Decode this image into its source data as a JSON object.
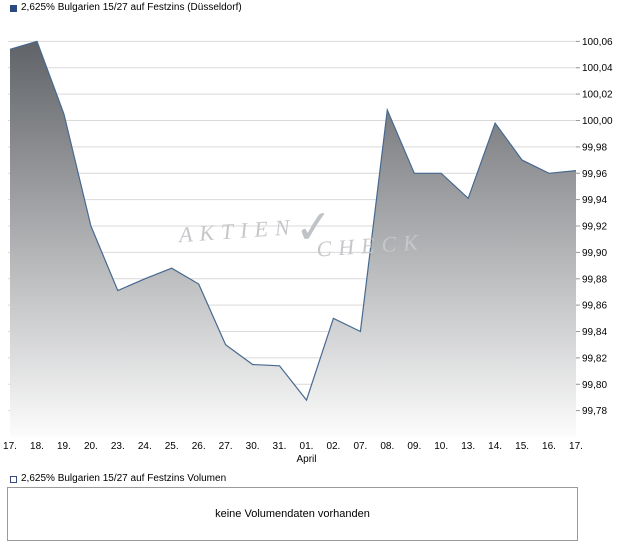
{
  "price_chart": {
    "legend_label": "2,625% Bulgarien 15/27 auf Festzins (Düsseldorf)",
    "legend_marker_color": "#2a4a80"
  },
  "watermark": {
    "left": "AKTIEN",
    "check": "✓",
    "right": "CHECK"
  },
  "chart_data": {
    "type": "area",
    "title": "2,625% Bulgarien 15/27 auf Festzins (Düsseldorf)",
    "categories": [
      "17.",
      "18.",
      "19.",
      "20.",
      "23.",
      "24.",
      "25.",
      "26.",
      "27.",
      "30.",
      "31.",
      "01.",
      "02.",
      "07.",
      "08.",
      "09.",
      "10.",
      "13.",
      "14.",
      "15.",
      "16.",
      "17."
    ],
    "values": [
      100.054,
      100.06,
      100.005,
      99.92,
      99.871,
      99.88,
      99.888,
      99.876,
      99.83,
      99.815,
      99.814,
      99.788,
      99.85,
      99.84,
      100.008,
      99.96,
      99.96,
      99.941,
      99.998,
      99.97,
      99.96,
      99.962
    ],
    "x_axis_label": "April",
    "month_label_index": 11,
    "yticks": [
      "100,06",
      "100,04",
      "100,02",
      "100,00",
      "99,98",
      "99,96",
      "99,94",
      "99,92",
      "99,90",
      "99,88",
      "99,86",
      "99,84",
      "99,82",
      "99,80",
      "99,78"
    ],
    "ytick_values": [
      100.06,
      100.04,
      100.02,
      100.0,
      99.98,
      99.96,
      99.94,
      99.92,
      99.9,
      99.88,
      99.86,
      99.84,
      99.82,
      99.8,
      99.78
    ],
    "ylim": [
      99.76,
      100.08
    ],
    "grid": true,
    "legend_position": "top-left",
    "line_color": "#47698f",
    "area_gradient_top": "#55585d",
    "area_gradient_bottom": "#fcfcfc",
    "grid_color": "#d9d9d9",
    "tick_color": "#999999"
  },
  "volume_panel": {
    "legend_label": "2,625% Bulgarien 15/27 auf Festzins Volumen",
    "legend_marker_border": "#3a4a7a",
    "message": "keine Volumendaten vorhanden"
  }
}
